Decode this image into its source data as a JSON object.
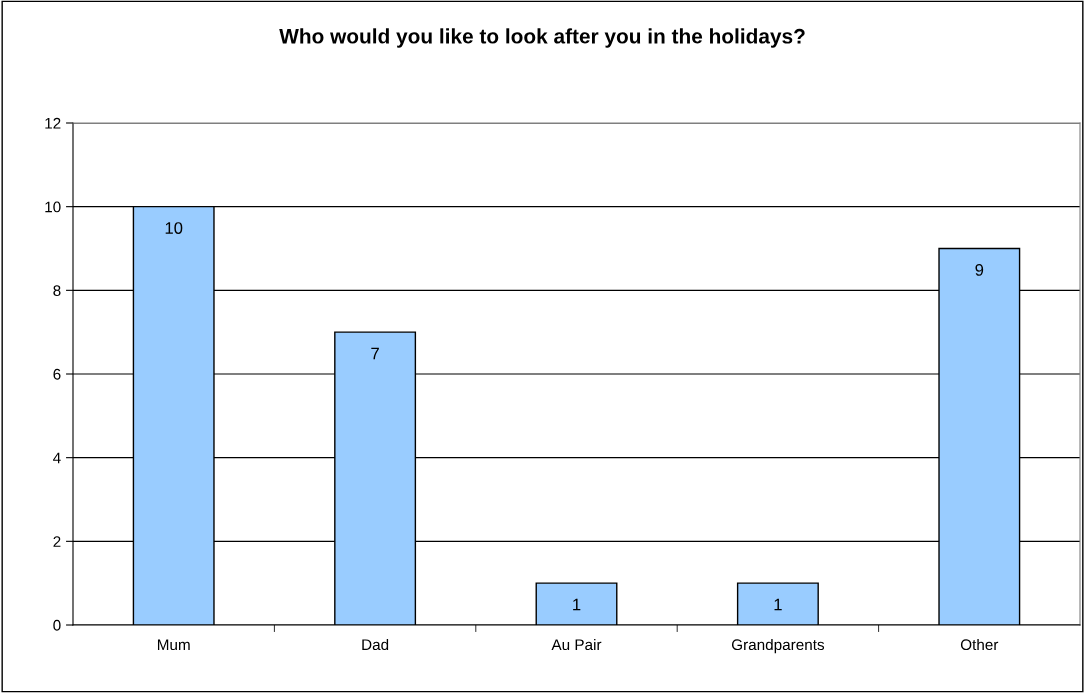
{
  "chart_data": {
    "type": "bar",
    "title": "Who would you like to look after you in the holidays?",
    "categories": [
      "Mum",
      "Dad",
      "Au Pair",
      "Grandparents",
      "Other"
    ],
    "values": [
      10,
      7,
      1,
      1,
      9
    ],
    "color": "#99ccff",
    "ylim": [
      0,
      12
    ],
    "yticks": [
      0,
      2,
      4,
      6,
      8,
      10,
      12
    ],
    "grid": "y",
    "data_labels": true
  }
}
